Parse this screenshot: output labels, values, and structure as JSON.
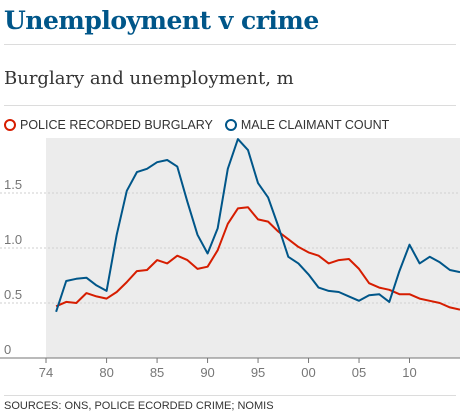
{
  "title": "Unemployment v crime",
  "subtitle": "Burglary and unemployment, m",
  "source": "SOURCES: ONS, POLICE ECORDED CRIME; NOMIS",
  "chart_data": {
    "type": "line",
    "xlim": [
      1974,
      2015
    ],
    "ylim": [
      0,
      2.0
    ],
    "x_ticks": [
      1974,
      1980,
      1985,
      1990,
      1995,
      2000,
      2005,
      2010
    ],
    "x_tick_labels": [
      "74",
      "80",
      "85",
      "90",
      "95",
      "00",
      "05",
      "10"
    ],
    "y_ticks": [
      0,
      0.5,
      1.0,
      1.5
    ],
    "y_tick_labels": [
      "0",
      "0.5",
      "1.0",
      "1.5"
    ],
    "grid": true,
    "legend": "top-left",
    "shaded_background": "#ececec",
    "series": [
      {
        "name": "POLICE RECORDED BURGLARY",
        "color": "#d61d00",
        "x": [
          1975,
          1976,
          1977,
          1978,
          1979,
          1980,
          1981,
          1982,
          1983,
          1984,
          1985,
          1986,
          1987,
          1988,
          1989,
          1990,
          1991,
          1992,
          1993,
          1994,
          1995,
          1996,
          1997,
          1998,
          1999,
          2000,
          2001,
          2002,
          2003,
          2004,
          2005,
          2006,
          2007,
          2008,
          2009,
          2010,
          2011,
          2012,
          2013,
          2014,
          2015
        ],
        "values": [
          0.47,
          0.51,
          0.5,
          0.59,
          0.56,
          0.54,
          0.6,
          0.69,
          0.79,
          0.8,
          0.89,
          0.86,
          0.93,
          0.89,
          0.81,
          0.83,
          0.98,
          1.22,
          1.36,
          1.37,
          1.26,
          1.24,
          1.15,
          1.08,
          1.01,
          0.96,
          0.93,
          0.86,
          0.89,
          0.9,
          0.81,
          0.68,
          0.64,
          0.62,
          0.58,
          0.58,
          0.54,
          0.52,
          0.5,
          0.46,
          0.44
        ]
      },
      {
        "name": "MALE CLAIMANT COUNT",
        "color": "#005689",
        "x": [
          1975,
          1976,
          1977,
          1978,
          1979,
          1980,
          1981,
          1982,
          1983,
          1984,
          1985,
          1986,
          1987,
          1988,
          1989,
          1990,
          1991,
          1992,
          1993,
          1994,
          1995,
          1996,
          1997,
          1998,
          1999,
          2000,
          2001,
          2002,
          2003,
          2004,
          2005,
          2006,
          2007,
          2008,
          2009,
          2010,
          2011,
          2012,
          2013,
          2014,
          2015
        ],
        "values": [
          0.42,
          0.7,
          0.72,
          0.73,
          0.66,
          0.61,
          1.12,
          1.52,
          1.69,
          1.72,
          1.78,
          1.8,
          1.74,
          1.42,
          1.12,
          0.95,
          1.18,
          1.72,
          1.99,
          1.89,
          1.59,
          1.46,
          1.2,
          0.92,
          0.86,
          0.76,
          0.64,
          0.61,
          0.6,
          0.56,
          0.52,
          0.57,
          0.58,
          0.51,
          0.79,
          1.03,
          0.86,
          0.92,
          0.87,
          0.8,
          0.78
        ]
      }
    ]
  }
}
